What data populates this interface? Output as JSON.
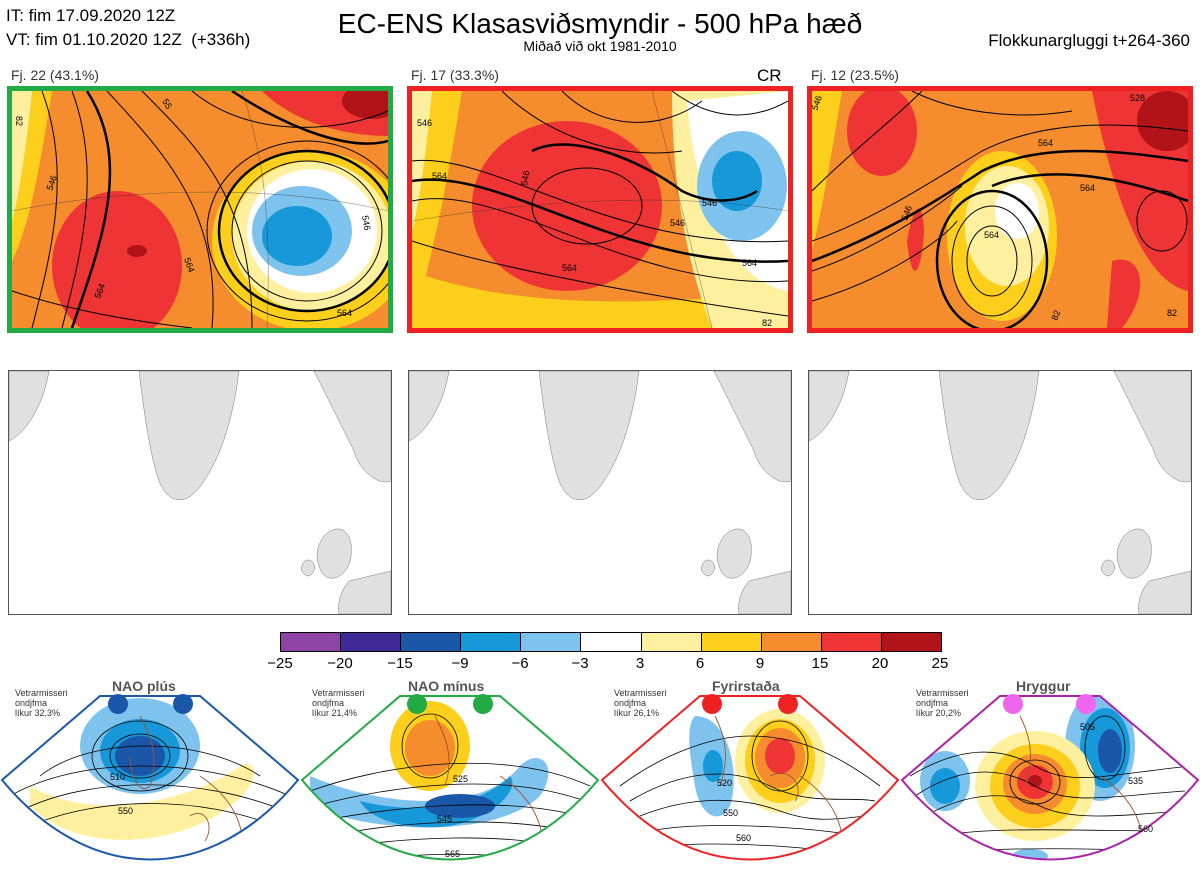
{
  "header": {
    "it_line": "IT: fim 17.09.2020 12Z",
    "vt_line": "VT: fim 01.10.2020 12Z  (+336h)",
    "title": "EC-ENS Klasasviðsmyndir - 500 hPa hæð",
    "subtitle": "Miðað við okt 1981-2010",
    "window": "Flokkunargluggi t+264-360"
  },
  "panels": [
    {
      "label": "Fj. 22 (43.1%)",
      "border_color": "#22aa44",
      "contours": [
        "564",
        "546",
        "564",
        "564",
        "546",
        "82",
        "55"
      ]
    },
    {
      "label": "Fj. 17 (33.3%)",
      "border_color": "#ee2222",
      "badge": "CR",
      "contours": [
        "546",
        "564",
        "546",
        "546",
        "564",
        "546",
        "564",
        "82"
      ]
    },
    {
      "label": "Fj. 12 (23.5%)",
      "border_color": "#ee2222",
      "contours": [
        "546",
        "564",
        "546",
        "564",
        "564",
        "528",
        "82",
        "82"
      ]
    }
  ],
  "colorbar": {
    "ticks": [
      "−25",
      "−20",
      "−15",
      "−9",
      "−6",
      "−3",
      "3",
      "6",
      "9",
      "15",
      "20",
      "25"
    ],
    "colors": [
      "#8e44a5",
      "#3f2a95",
      "#1a57a8",
      "#1798d9",
      "#7ec3ee",
      "#ffffff",
      "#fff0a0",
      "#fccf1c",
      "#f58c2e",
      "#ee3434",
      "#b01419"
    ]
  },
  "regimes": [
    {
      "title": "NAO plús",
      "side": [
        "Vetrarmisseri",
        "ondjfma",
        "líkur 32,3%"
      ],
      "color": "#1a57a8",
      "contours": [
        "510",
        "550"
      ]
    },
    {
      "title": "NAO mínus",
      "side": [
        "Vetrarmisseri",
        "ondjfma",
        "líkur 21,4%"
      ],
      "color": "#22aa44",
      "contours": [
        "525",
        "545",
        "565"
      ]
    },
    {
      "title": "Fyrirstaða",
      "side": [
        "Vetrarmisseri",
        "ondjfma",
        "líkur 26,1%"
      ],
      "color": "#ee2222",
      "contours": [
        "520",
        "550",
        "560"
      ]
    },
    {
      "title": "Hryggur",
      "side": [
        "Vetrarmisseri",
        "ondjfma",
        "líkur 20,2%"
      ],
      "color": "#ee66ee",
      "contours": [
        "505",
        "535",
        "560"
      ]
    }
  ]
}
